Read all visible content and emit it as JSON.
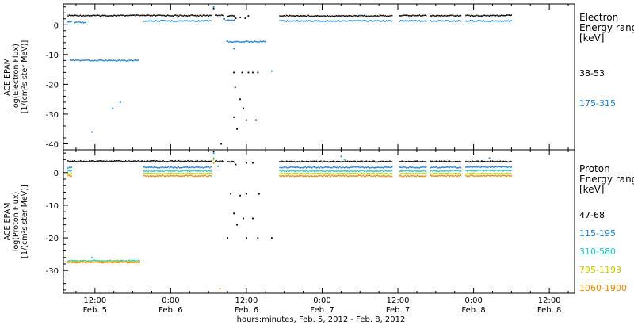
{
  "xlabel": "hours:minutes, Feb.  5, 2012 - Feb.  8, 2012",
  "x_ticks": [
    {
      "time": "12:00",
      "date": "Feb. 5",
      "h": 12
    },
    {
      "time": "0:00",
      "date": "Feb. 6",
      "h": 24
    },
    {
      "time": "12:00",
      "date": "Feb. 6",
      "h": 36
    },
    {
      "time": "0:00",
      "date": "Feb. 7",
      "h": 48
    },
    {
      "time": "12:00",
      "date": "Feb. 7",
      "h": 60
    },
    {
      "time": "0:00",
      "date": "Feb. 8",
      "h": 72
    },
    {
      "time": "12:00",
      "date": "Feb. 8",
      "h": 84
    }
  ],
  "chart_data": [
    {
      "type": "scatter",
      "id": "electron",
      "ylabel_lines": [
        "ACE EPAM",
        "log(Electron Flux)",
        "[1/(cm²s ster MeV)]"
      ],
      "xlim_hours": [
        7,
        88
      ],
      "ylim": [
        -42,
        7
      ],
      "yticks": [
        0,
        -10,
        -20,
        -30,
        -40
      ],
      "legend_title": [
        "Electron",
        "Energy ranges",
        "[keV]"
      ],
      "series": [
        {
          "name": "38-53",
          "color": "#000000",
          "segments": [
            {
              "x": [
                7.5,
                30.3
              ],
              "y": 3.1
            },
            {
              "x": [
                31.0,
                32.3
              ],
              "y": 3.1
            },
            {
              "x": [
                33.0,
                34.0
              ],
              "y": 3.0
            },
            {
              "x": [
                41.2,
                59.0
              ],
              "y": 3.0
            },
            {
              "x": [
                60.2,
                64.4
              ],
              "y": 3.1
            },
            {
              "x": [
                65.1,
                69.9
              ],
              "y": 3.1
            },
            {
              "x": [
                70.7,
                77.9
              ],
              "y": 3.1
            }
          ],
          "points": [
            [
              30.8,
              5.5
            ],
            [
              34.3,
              2.2
            ],
            [
              35.0,
              2.5
            ],
            [
              35.8,
              2.2
            ],
            [
              36.3,
              3.0
            ],
            [
              34.0,
              -16.0
            ],
            [
              35.3,
              -16.0
            ],
            [
              36.3,
              -16.0
            ],
            [
              37.0,
              -16.0
            ],
            [
              37.8,
              -16.0
            ],
            [
              34.2,
              -21.0
            ],
            [
              35.0,
              -25.0
            ],
            [
              35.5,
              -28.0
            ],
            [
              34.0,
              -31.0
            ],
            [
              34.5,
              -35.0
            ],
            [
              36.0,
              -32.0
            ],
            [
              37.5,
              -32.0
            ],
            [
              32.0,
              -40.0
            ]
          ]
        },
        {
          "name": "175-315",
          "color": "#1f7fd0",
          "segments": [
            {
              "x": [
                7.5,
                8.2
              ],
              "y": 1.0
            },
            {
              "x": [
                8.7,
                10.5
              ],
              "y": 0.8
            },
            {
              "x": [
                19.7,
                30.3
              ],
              "y": 1.3
            },
            {
              "x": [
                32.6,
                34.0
              ],
              "y": 1.5
            },
            {
              "x": [
                41.2,
                59.0
              ],
              "y": 1.3
            },
            {
              "x": [
                60.2,
                64.4
              ],
              "y": 1.3
            },
            {
              "x": [
                65.1,
                69.9
              ],
              "y": 1.3
            },
            {
              "x": [
                70.7,
                77.9
              ],
              "y": 1.3
            },
            {
              "x": [
                8.0,
                18.8
              ],
              "y": -12.0
            },
            {
              "x": [
                32.8,
                39.0
              ],
              "y": -5.7
            }
          ],
          "points": [
            [
              30.8,
              6.0
            ],
            [
              32.5,
              2.0
            ],
            [
              34.0,
              -8.0
            ],
            [
              40.0,
              -15.5
            ],
            [
              16.0,
              -26.0
            ],
            [
              14.8,
              -28.0
            ],
            [
              11.5,
              -36.0
            ]
          ]
        }
      ]
    },
    {
      "type": "scatter",
      "id": "proton",
      "ylabel_lines": [
        "ACE EPAM",
        "log(Proton Flux)",
        "[1/(cm²s ster MeV)]"
      ],
      "xlim_hours": [
        7,
        88
      ],
      "ylim": [
        -37,
        7
      ],
      "yticks": [
        0,
        -10,
        -20,
        -30
      ],
      "legend_title": [
        "Proton",
        "Energy ranges",
        "[keV]"
      ],
      "series": [
        {
          "name": "47-68",
          "color": "#000000",
          "segments": [
            {
              "x": [
                7.5,
                30.3
              ],
              "y": 3.5
            },
            {
              "x": [
                31.0,
                32.3
              ],
              "y": 3.5
            },
            {
              "x": [
                33.0,
                34.0
              ],
              "y": 3.3
            },
            {
              "x": [
                41.2,
                59.0
              ],
              "y": 3.4
            },
            {
              "x": [
                60.2,
                64.4
              ],
              "y": 3.4
            },
            {
              "x": [
                65.1,
                69.9
              ],
              "y": 3.4
            },
            {
              "x": [
                70.7,
                77.9
              ],
              "y": 3.4
            }
          ],
          "points": [
            [
              30.8,
              6.5
            ],
            [
              34.3,
              2.5
            ],
            [
              36.0,
              3.0
            ],
            [
              37.0,
              3.0
            ],
            [
              33.5,
              -6.5
            ],
            [
              35.0,
              -7.0
            ],
            [
              36.0,
              -6.5
            ],
            [
              38.0,
              -6.5
            ],
            [
              34.0,
              -12.5
            ],
            [
              35.5,
              -14.0
            ],
            [
              37.0,
              -14.0
            ],
            [
              34.5,
              -16.0
            ],
            [
              36.0,
              -20.0
            ],
            [
              33.0,
              -20.0
            ],
            [
              37.8,
              -20.0
            ],
            [
              40.0,
              -20.0
            ]
          ]
        },
        {
          "name": "115-195",
          "color": "#1f7fd0",
          "segments": [
            {
              "x": [
                7.5,
                8.2
              ],
              "y": 1.5
            },
            {
              "x": [
                19.7,
                30.3
              ],
              "y": 1.6
            },
            {
              "x": [
                41.2,
                59.0
              ],
              "y": 1.6
            },
            {
              "x": [
                60.2,
                64.4
              ],
              "y": 1.6
            },
            {
              "x": [
                65.1,
                69.9
              ],
              "y": 1.6
            },
            {
              "x": [
                70.7,
                77.9
              ],
              "y": 1.7
            }
          ],
          "points": [
            [
              30.8,
              6.0
            ],
            [
              51.0,
              5.0
            ],
            [
              74.5,
              4.5
            ],
            [
              31.5,
              2.0
            ]
          ]
        },
        {
          "name": "310-580",
          "color": "#1ec8c8",
          "segments": [
            {
              "x": [
                7.5,
                8.2
              ],
              "y": 0.5
            },
            {
              "x": [
                19.7,
                30.3
              ],
              "y": 0.5
            },
            {
              "x": [
                41.2,
                59.0
              ],
              "y": 0.5
            },
            {
              "x": [
                60.2,
                64.4
              ],
              "y": 0.5
            },
            {
              "x": [
                65.1,
                69.9
              ],
              "y": 0.5
            },
            {
              "x": [
                70.7,
                77.9
              ],
              "y": 0.6
            },
            {
              "x": [
                7.5,
                19.0
              ],
              "y": -27.0
            }
          ],
          "points": [
            [
              30.8,
              4.5
            ],
            [
              51.5,
              4.0
            ],
            [
              11.5,
              -26.0
            ]
          ]
        },
        {
          "name": "795-1193",
          "color": "#c8c800",
          "segments": [
            {
              "x": [
                7.5,
                8.2
              ],
              "y": -0.3
            },
            {
              "x": [
                19.7,
                30.3
              ],
              "y": -0.3
            },
            {
              "x": [
                41.2,
                59.0
              ],
              "y": -0.3
            },
            {
              "x": [
                60.2,
                64.4
              ],
              "y": -0.3
            },
            {
              "x": [
                65.1,
                69.9
              ],
              "y": -0.3
            },
            {
              "x": [
                70.7,
                77.9
              ],
              "y": -0.3
            },
            {
              "x": [
                7.5,
                19.0
              ],
              "y": -27.3
            }
          ],
          "points": [
            [
              30.8,
              4.0
            ]
          ]
        },
        {
          "name": "1060-1900",
          "color": "#e88a00",
          "segments": [
            {
              "x": [
                7.5,
                8.2
              ],
              "y": -1.0
            },
            {
              "x": [
                19.7,
                30.3
              ],
              "y": -1.0
            },
            {
              "x": [
                41.2,
                59.0
              ],
              "y": -1.0
            },
            {
              "x": [
                60.2,
                64.4
              ],
              "y": -1.0
            },
            {
              "x": [
                65.1,
                69.9
              ],
              "y": -1.0
            },
            {
              "x": [
                70.7,
                77.9
              ],
              "y": -1.0
            },
            {
              "x": [
                7.5,
                19.0
              ],
              "y": -27.5
            }
          ],
          "points": [
            [
              30.8,
              3.0
            ],
            [
              31.8,
              -35.5
            ]
          ]
        }
      ]
    }
  ]
}
